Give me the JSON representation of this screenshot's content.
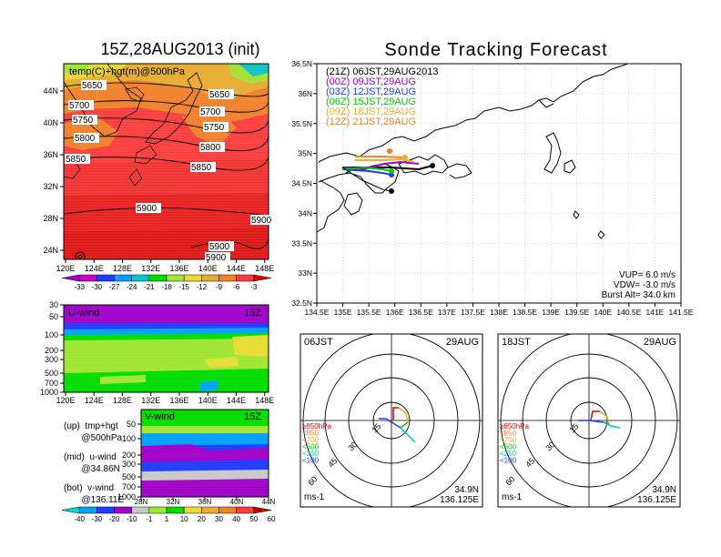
{
  "titles": {
    "left": "15Z,28AUG2013 (init)",
    "right": "Sonde Tracking Forecast"
  },
  "top_map": {
    "label": "temp(C)+hgt(m)@500hPa",
    "x_ticks": [
      "120E",
      "124E",
      "128E",
      "132E",
      "136E",
      "140E",
      "144E",
      "148E"
    ],
    "y_ticks": [
      "44N",
      "40N",
      "36N",
      "32N",
      "28N",
      "24N"
    ],
    "contours": [
      "5650",
      "5650",
      "5700",
      "5700",
      "5750",
      "5750",
      "5800",
      "5800",
      "5850",
      "5850",
      "5900",
      "5900",
      "5900",
      "5900"
    ]
  },
  "temp_colorbar": {
    "labels": [
      "-33",
      "-30",
      "-27",
      "-24",
      "-21",
      "-18",
      "-15",
      "-12",
      "-9",
      "-6",
      "-3"
    ],
    "colors": [
      "#a000c8",
      "#c800c8",
      "#1e3cff",
      "#00a0ff",
      "#00c8c8",
      "#00dc00",
      "#a0e632",
      "#e6dc32",
      "#e6af2d",
      "#f08228",
      "#fa3c3c",
      "#e60000"
    ]
  },
  "u_wind": {
    "label": "U-wind",
    "time": "15Z",
    "y_ticks": [
      "30",
      "50",
      "100",
      "200",
      "300",
      "500",
      "700",
      "1000"
    ],
    "x_ticks": [
      "120E",
      "124E",
      "128E",
      "132E",
      "136E",
      "140E",
      "144E",
      "148E"
    ]
  },
  "v_wind": {
    "label": "V-wind",
    "time": "15Z",
    "y_ticks": [
      "50",
      "100",
      "200",
      "300",
      "500",
      "700",
      "1000"
    ],
    "x_ticks": [
      "28N",
      "32N",
      "36N",
      "40N",
      "44N"
    ]
  },
  "wind_colorbar": {
    "labels": [
      "-40",
      "-30",
      "-20",
      "-10",
      "-1",
      "1",
      "10",
      "20",
      "30",
      "40",
      "50",
      "60"
    ],
    "colors": [
      "#00dcdc",
      "#00a0ff",
      "#1e3cff",
      "#a000c8",
      "#c8c8c8",
      "#a0e632",
      "#00dc00",
      "#e6dc32",
      "#e6af2d",
      "#f08228",
      "#fa3c3c",
      "#c80000"
    ]
  },
  "notes": {
    "up": "(up)  tmp+hgt",
    "up2": "       @500hPa",
    "mid": "(mid)  u-wind",
    "mid2": "       @34.86N",
    "bot": "(bot)  v-wind",
    "bot2": "       @136.11E"
  },
  "track_map": {
    "x_ticks": [
      "134.5E",
      "135E",
      "135.5E",
      "136E",
      "136.5E",
      "137E",
      "137.5E",
      "138E",
      "138.5E",
      "139E",
      "139.5E",
      "140E",
      "140.5E",
      "141E",
      "141.5E"
    ],
    "y_ticks": [
      "36.5N",
      "36N",
      "35.5N",
      "35N",
      "34.5N",
      "34N",
      "33.5N",
      "33N",
      "32.5N"
    ],
    "legend": [
      {
        "text": "(21Z)  06JST,29AUG2013",
        "color": "#000000"
      },
      {
        "text": "(00Z)  09JST,29AUG",
        "color": "#a000c8"
      },
      {
        "text": "(03Z)  12JST,29AUG",
        "color": "#1e3cff"
      },
      {
        "text": "(06Z)  15JST,29AUG",
        "color": "#00c800"
      },
      {
        "text": "(09Z)  18JST,29AUG",
        "color": "#e6af2d"
      },
      {
        "text": "(12Z)  21JST,29AUG",
        "color": "#f08228"
      }
    ],
    "vup": "VUP=  6.0  m/s",
    "vdw": "VDW= -3.0  m/s",
    "burst": "Burst Alt=  34.0  km"
  },
  "polar_left": {
    "time": "06JST",
    "date": "29AUG",
    "lat": "34.9N",
    "lon": "136.125E",
    "unit": "ms-1",
    "ring_labels": [
      "15",
      "30",
      "45",
      "60"
    ],
    "legend": [
      {
        "text": "≥850hPa",
        "color": "#e60000"
      },
      {
        "text": "<850",
        "color": "#f08228"
      },
      {
        "text": "<700",
        "color": "#e6af2d"
      },
      {
        "text": "<500",
        "color": "#00c800"
      },
      {
        "text": "<250",
        "color": "#00c8c8"
      },
      {
        "text": "<100",
        "color": "#1e3cff"
      }
    ]
  },
  "polar_right": {
    "time": "18JST",
    "date": "29AUG",
    "lat": "34.9N",
    "lon": "136.125E",
    "unit": "ms-1",
    "ring_labels": [
      "15",
      "30",
      "45",
      "60"
    ],
    "legend": [
      {
        "text": "≥850hPa",
        "color": "#e60000"
      },
      {
        "text": "<850",
        "color": "#f08228"
      },
      {
        "text": "<700",
        "color": "#e6af2d"
      },
      {
        "text": "<500",
        "color": "#00c800"
      },
      {
        "text": "<250",
        "color": "#00c8c8"
      },
      {
        "text": "<100",
        "color": "#1e3cff"
      }
    ]
  }
}
